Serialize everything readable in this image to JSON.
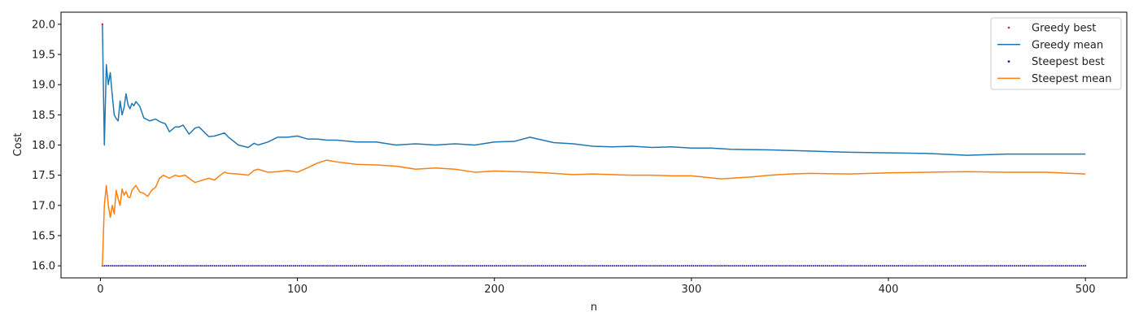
{
  "chart_data": {
    "type": "line",
    "title": "",
    "xlabel": "n",
    "ylabel": "Cost",
    "xlim": [
      -20,
      521
    ],
    "ylim": [
      15.8,
      20.2
    ],
    "xticks": [
      0,
      100,
      200,
      300,
      400,
      500
    ],
    "yticks": [
      16.0,
      16.5,
      17.0,
      17.5,
      18.0,
      18.5,
      19.0,
      19.5,
      20.0
    ],
    "xtick_labels": [
      "0",
      "100",
      "200",
      "300",
      "400",
      "500"
    ],
    "ytick_labels": [
      "16.0",
      "16.5",
      "17.0",
      "17.5",
      "18.0",
      "18.5",
      "19.0",
      "19.5",
      "20.0"
    ],
    "grid": false,
    "legend_position": "top-right",
    "series": [
      {
        "name": "Greedy best",
        "kind": "scatter",
        "color": "#d62728",
        "x_range": [
          1,
          500
        ],
        "constant_value": 16.0
      },
      {
        "name": "Greedy mean",
        "kind": "line",
        "color": "#1f77b4",
        "x": [
          1,
          2,
          3,
          4,
          5,
          6,
          7,
          8,
          9,
          10,
          11,
          12,
          13,
          14,
          15,
          16,
          17,
          18,
          19,
          20,
          22,
          25,
          28,
          30,
          33,
          35,
          38,
          40,
          42,
          45,
          48,
          50,
          55,
          58,
          60,
          63,
          65,
          70,
          75,
          78,
          80,
          85,
          90,
          95,
          100,
          105,
          110,
          115,
          120,
          130,
          140,
          150,
          160,
          170,
          180,
          190,
          200,
          210,
          218,
          230,
          240,
          250,
          260,
          270,
          280,
          290,
          300,
          310,
          320,
          340,
          360,
          380,
          400,
          420,
          440,
          460,
          480,
          500
        ],
        "values": [
          20.0,
          18.0,
          19.33,
          19.0,
          19.2,
          18.83,
          18.5,
          18.44,
          18.4,
          18.73,
          18.5,
          18.62,
          18.85,
          18.67,
          18.6,
          18.69,
          18.65,
          18.72,
          18.68,
          18.64,
          18.45,
          18.4,
          18.43,
          18.39,
          18.35,
          18.22,
          18.3,
          18.3,
          18.33,
          18.18,
          18.28,
          18.3,
          18.14,
          18.15,
          18.17,
          18.2,
          18.13,
          18.0,
          17.96,
          18.03,
          18.0,
          18.05,
          18.13,
          18.13,
          18.15,
          18.1,
          18.1,
          18.08,
          18.08,
          18.05,
          18.05,
          18.0,
          18.02,
          18.0,
          18.02,
          18.0,
          18.05,
          18.06,
          18.13,
          18.04,
          18.02,
          17.98,
          17.97,
          17.98,
          17.96,
          17.97,
          17.95,
          17.95,
          17.93,
          17.92,
          17.9,
          17.88,
          17.87,
          17.86,
          17.83,
          17.85,
          17.85,
          17.85
        ]
      },
      {
        "name": "Steepest best",
        "kind": "scatter",
        "color": "#0000cc",
        "x_range": [
          1,
          500
        ],
        "constant_value": 16.0
      },
      {
        "name": "Steepest mean",
        "kind": "line",
        "color": "#ff7f0e",
        "x": [
          1,
          2,
          3,
          4,
          5,
          6,
          7,
          8,
          9,
          10,
          11,
          12,
          13,
          14,
          15,
          16,
          17,
          18,
          20,
          22,
          24,
          26,
          28,
          30,
          32,
          35,
          38,
          40,
          43,
          45,
          48,
          50,
          55,
          58,
          60,
          63,
          65,
          70,
          75,
          78,
          80,
          85,
          90,
          95,
          100,
          105,
          110,
          115,
          120,
          125,
          130,
          140,
          150,
          160,
          170,
          180,
          190,
          200,
          210,
          220,
          230,
          240,
          250,
          260,
          270,
          280,
          290,
          300,
          315,
          320,
          330,
          340,
          350,
          360,
          380,
          400,
          420,
          440,
          460,
          480,
          500
        ],
        "values": [
          16.0,
          17.0,
          17.33,
          17.0,
          16.8,
          17.0,
          16.86,
          17.25,
          17.11,
          17.0,
          17.27,
          17.17,
          17.23,
          17.14,
          17.13,
          17.25,
          17.29,
          17.33,
          17.22,
          17.2,
          17.15,
          17.25,
          17.3,
          17.45,
          17.5,
          17.45,
          17.5,
          17.48,
          17.5,
          17.45,
          17.38,
          17.4,
          17.45,
          17.42,
          17.48,
          17.55,
          17.53,
          17.52,
          17.5,
          17.58,
          17.6,
          17.55,
          17.56,
          17.58,
          17.55,
          17.62,
          17.7,
          17.75,
          17.72,
          17.7,
          17.68,
          17.67,
          17.65,
          17.6,
          17.62,
          17.6,
          17.55,
          17.57,
          17.56,
          17.55,
          17.53,
          17.51,
          17.52,
          17.51,
          17.5,
          17.5,
          17.49,
          17.49,
          17.44,
          17.45,
          17.47,
          17.5,
          17.52,
          17.53,
          17.52,
          17.54,
          17.55,
          17.56,
          17.55,
          17.55,
          17.52
        ]
      }
    ]
  }
}
